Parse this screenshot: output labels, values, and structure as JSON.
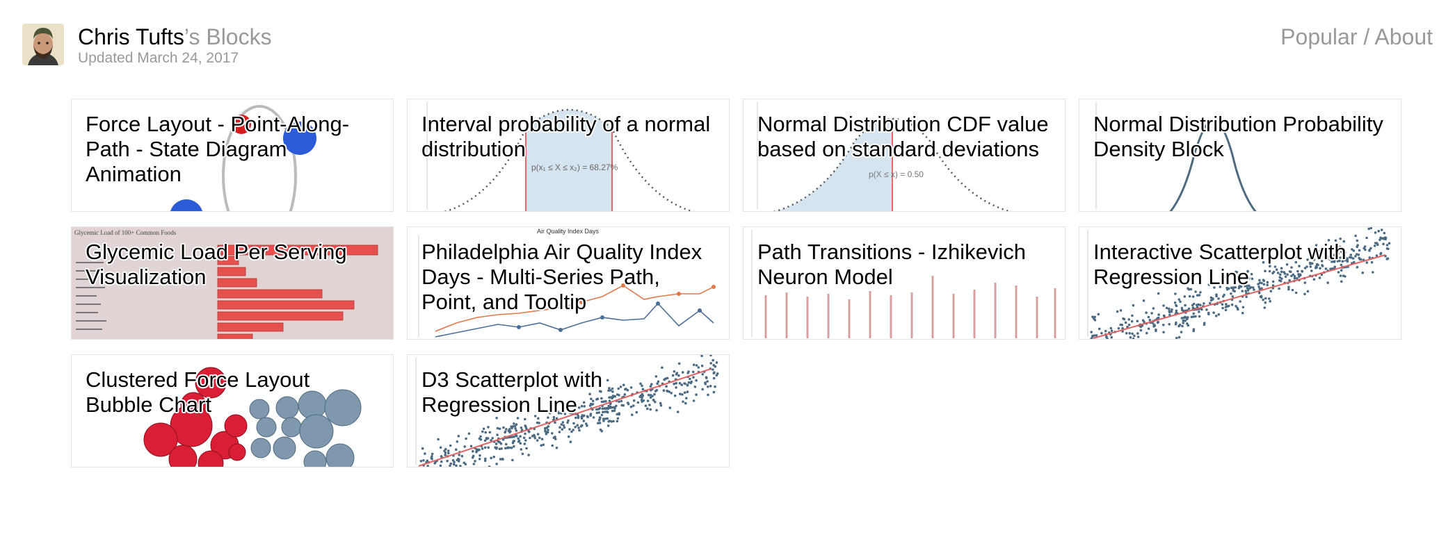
{
  "header": {
    "owner_name": "Chris Tufts",
    "blocks_suffix": "’s Blocks",
    "updated_text": "Updated March 24, 2017",
    "nav_popular": "Popular",
    "nav_separator": " / ",
    "nav_about": "About"
  },
  "cards": [
    {
      "title": "Force Layout - Point-Along-Path - State Diagram Animation",
      "thumbnail": "force-layout-state-diagram"
    },
    {
      "title": "Interval probability of a normal distribution",
      "thumbnail": "normal-distribution-interval",
      "annotation": "p(x₁ ≤ X ≤ x₂) = 68.27%"
    },
    {
      "title": "Normal Distribution CDF value based on standard deviations",
      "thumbnail": "normal-distribution-cdf",
      "annotation": "p(X ≤ x) = 0.50"
    },
    {
      "title": "Normal Distribution Probability Density Block",
      "thumbnail": "normal-distribution-pdf"
    },
    {
      "title": "Glycemic Load Per Serving Visualization",
      "thumbnail": "glycemic-load-bar-chart",
      "annotation": "Glycemic Load of 100+ Common Foods"
    },
    {
      "title": "Philadelphia Air Quality Index Days - Multi-Series Path, Point, and Tooltip",
      "thumbnail": "air-quality-multi-series",
      "annotation": "Air Quality Index Days"
    },
    {
      "title": "Path Transitions - Izhikevich Neuron Model",
      "thumbnail": "neuron-spike-train"
    },
    {
      "title": "Interactive Scatterplot with Regression Line",
      "thumbnail": "scatterplot-regression"
    },
    {
      "title": "Clustered Force Layout Bubble Chart",
      "thumbnail": "clustered-bubble-chart"
    },
    {
      "title": "D3 Scatterplot with Regression Line",
      "thumbnail": "scatterplot-regression-2"
    }
  ]
}
